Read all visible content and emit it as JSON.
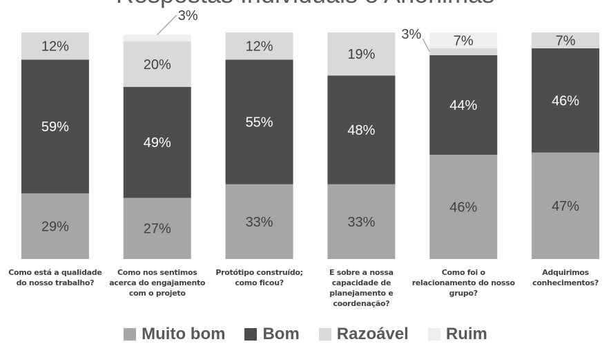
{
  "chart_data": {
    "type": "stacked_bar",
    "title": "Respostas Individuais e Anônimas",
    "categories": [
      "Como está a qualidade do nosso trabalho?",
      "Como nos sentimos acerca do engajamento com o projeto",
      "Protótipo construído; como ficou?",
      "E sobre a nossa capacidade de planejamento e coordenação?",
      "Como foi o relacionamento do nosso grupo?",
      "Adquirimos conhecimentos?"
    ],
    "series": [
      {
        "name": "Muito bom",
        "color": "#a6a6a6",
        "values": [
          29,
          27,
          33,
          33,
          46,
          47
        ],
        "value_labels": [
          "29%",
          "27%",
          "33%",
          "33%",
          "46%",
          "47%"
        ]
      },
      {
        "name": "Bom",
        "color": "#4d4d4f",
        "values": [
          59,
          49,
          55,
          48,
          44,
          46
        ],
        "value_labels": [
          "59%",
          "49%",
          "55%",
          "48%",
          "44%",
          "46%"
        ]
      },
      {
        "name": "Razoável",
        "color": "#d9d9d9",
        "values": [
          12,
          20,
          12,
          19,
          3,
          7
        ],
        "value_labels": [
          "12%",
          "20%",
          "12%",
          "19%",
          "3%",
          "7%"
        ]
      },
      {
        "name": "Ruim",
        "color": "#efefef",
        "values": [
          null,
          3,
          null,
          null,
          7,
          null
        ],
        "value_labels": [
          null,
          "3%",
          null,
          null,
          "7%",
          null
        ]
      }
    ],
    "ylim": [
      0,
      100
    ]
  }
}
